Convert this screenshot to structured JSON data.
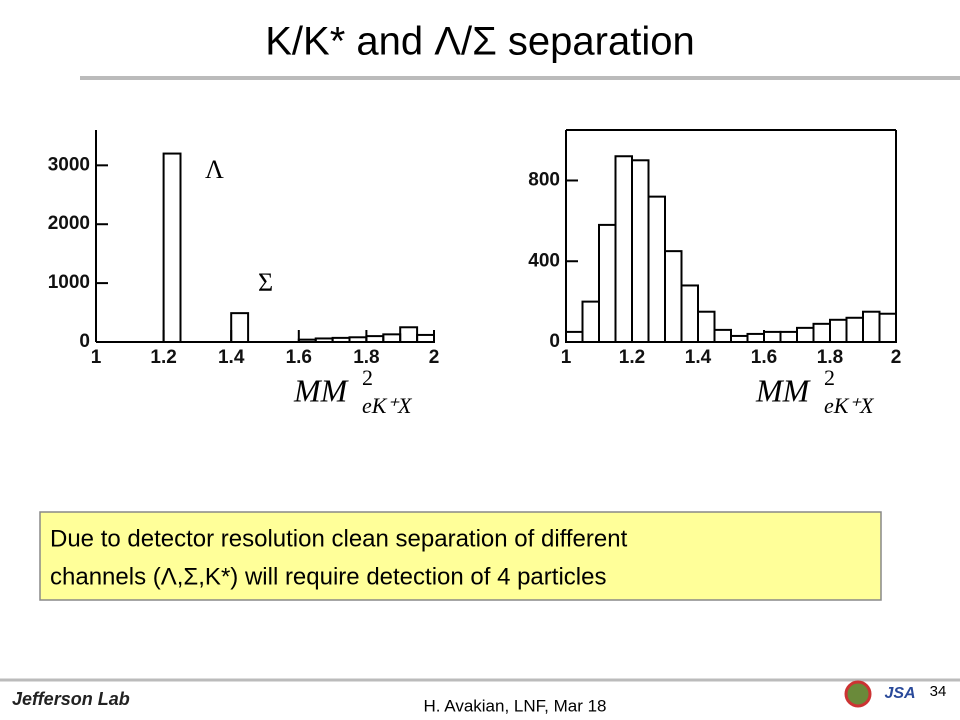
{
  "title": "K/K* and Λ/Σ separation",
  "chart_data": [
    {
      "type": "histogram",
      "bins": [
        1,
        1.05,
        1.1,
        1.15,
        1.2,
        1.25,
        1.3,
        1.35,
        1.4,
        1.45,
        1.5,
        1.55,
        1.6,
        1.65,
        1.7,
        1.75,
        1.8,
        1.85,
        1.9,
        1.95,
        2
      ],
      "values": [
        0,
        0,
        0,
        0,
        3200,
        0,
        0,
        0,
        490,
        0,
        0,
        0,
        40,
        60,
        70,
        80,
        100,
        130,
        250,
        120
      ],
      "xlim": [
        1,
        2
      ],
      "xticks": [
        1,
        1.2,
        1.4,
        1.6,
        1.8,
        2
      ],
      "ylim": [
        0,
        3600
      ],
      "yticks": [
        0,
        1000,
        2000,
        3000
      ],
      "xlabel": "MM",
      "xlabel_sup": "2",
      "xlabel_sub": "eK⁺X",
      "annotations": [
        "Λ",
        "Σ"
      ],
      "color": "#000000"
    },
    {
      "type": "histogram",
      "bins": [
        1,
        1.05,
        1.1,
        1.15,
        1.2,
        1.25,
        1.3,
        1.35,
        1.4,
        1.45,
        1.5,
        1.55,
        1.6,
        1.65,
        1.7,
        1.75,
        1.8,
        1.85,
        1.9,
        1.95,
        2
      ],
      "values": [
        50,
        200,
        580,
        920,
        900,
        720,
        450,
        280,
        150,
        60,
        30,
        40,
        50,
        50,
        70,
        90,
        110,
        120,
        150,
        140
      ],
      "xlim": [
        1,
        2
      ],
      "xticks": [
        1,
        1.2,
        1.4,
        1.6,
        1.8,
        2
      ],
      "ylim": [
        0,
        1050
      ],
      "yticks": [
        0,
        400,
        800
      ],
      "xlabel": "MM",
      "xlabel_sup": "2",
      "xlabel_sub": "eK⁺X",
      "color": "#000000"
    }
  ],
  "note": {
    "line1": "Due to detector resolution  clean separation of different",
    "line2": "channels (Λ,Σ,K*) will require detection of 4 particles"
  },
  "footer": {
    "logo": "Jefferson Lab",
    "author": "H. Avakian,  LNF,  Mar 18",
    "page": "34",
    "partner": "JSA"
  }
}
